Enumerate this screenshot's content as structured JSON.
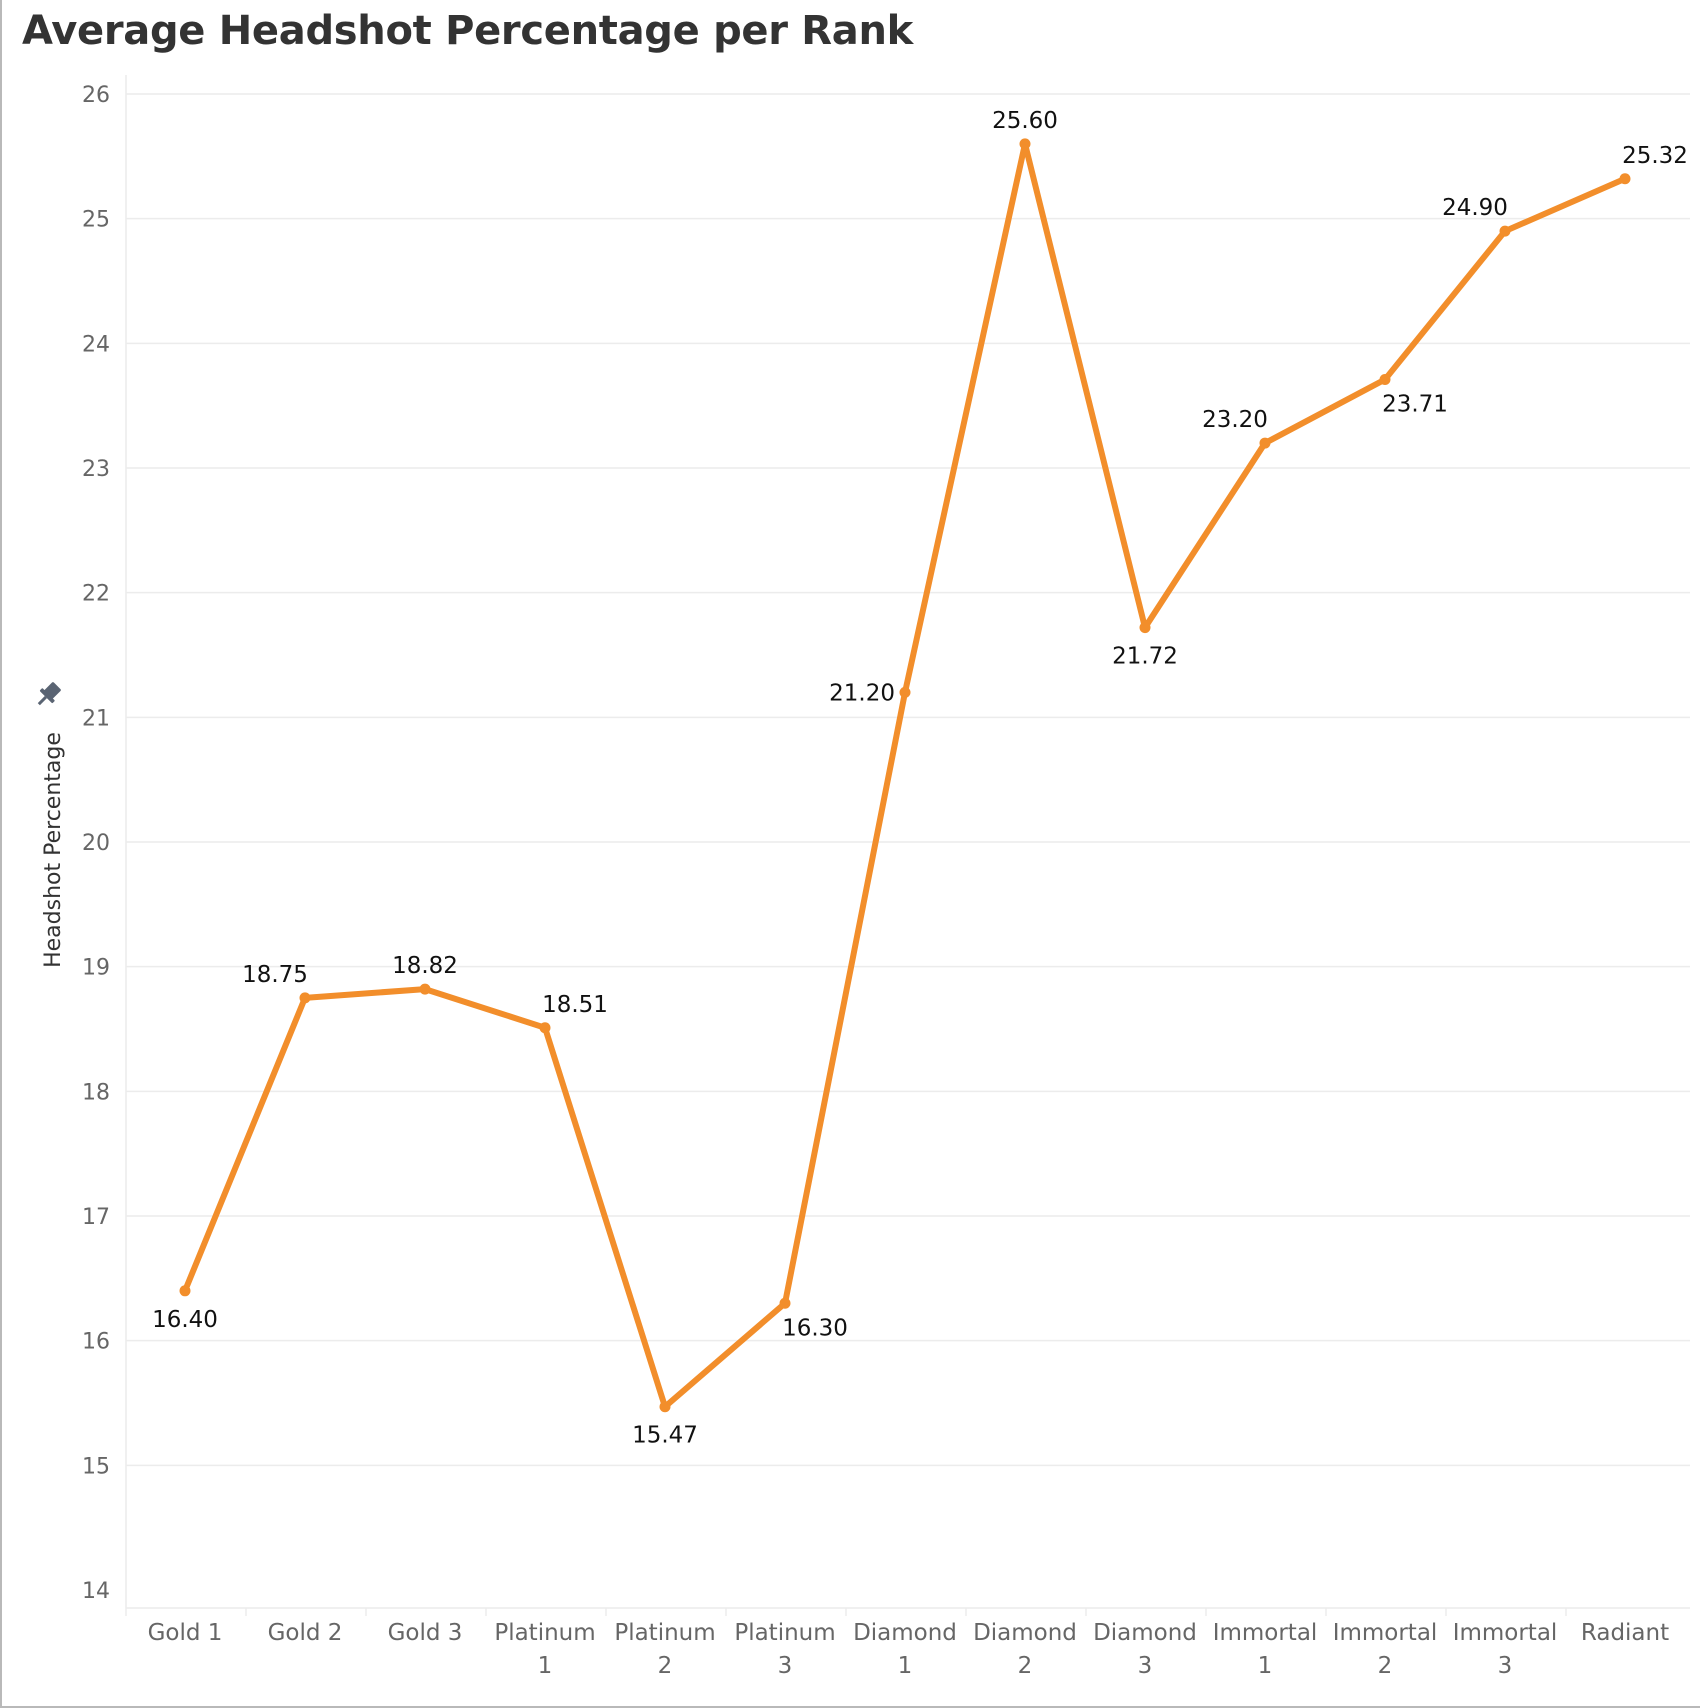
{
  "chart_data": {
    "type": "line",
    "title": "Average Headshot Percentage per Rank",
    "ylabel": "Headshot Percentage",
    "xlabel": "",
    "ylim": [
      14,
      26
    ],
    "yticks": [
      "14",
      "15",
      "16",
      "17",
      "18",
      "19",
      "20",
      "21",
      "22",
      "23",
      "24",
      "25",
      "26"
    ],
    "grid": true,
    "categories": [
      [
        "Gold 1"
      ],
      [
        "Gold 2"
      ],
      [
        "Gold 3"
      ],
      [
        "Platinum",
        "1"
      ],
      [
        "Platinum",
        "2"
      ],
      [
        "Platinum",
        "3"
      ],
      [
        "Diamond",
        "1"
      ],
      [
        "Diamond",
        "2"
      ],
      [
        "Diamond",
        "3"
      ],
      [
        "Immortal",
        "1"
      ],
      [
        "Immortal",
        "2"
      ],
      [
        "Immortal",
        "3"
      ],
      [
        "Radiant"
      ]
    ],
    "values": [
      16.4,
      18.75,
      18.82,
      18.51,
      15.47,
      16.3,
      21.2,
      25.6,
      21.72,
      23.2,
      23.71,
      24.9,
      25.32
    ],
    "data_labels": [
      "16.40",
      "18.75",
      "18.82",
      "18.51",
      "15.47",
      "16.30",
      "21.20",
      "25.60",
      "21.72",
      "23.20",
      "23.71",
      "24.90",
      "25.32"
    ],
    "label_positions": [
      "below",
      "above-left",
      "above",
      "above-right",
      "below",
      "below-right",
      "left",
      "above",
      "below",
      "above-left",
      "below-right",
      "above-left",
      "above-right"
    ],
    "line_color": "#f28e2b",
    "pin_icon": "pin-icon"
  }
}
